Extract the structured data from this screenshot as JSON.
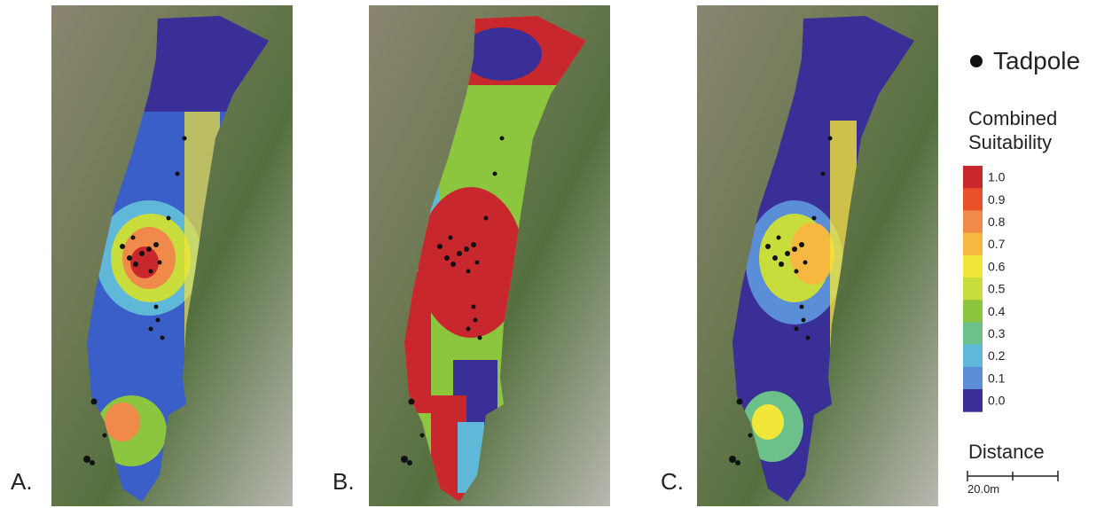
{
  "panels": [
    {
      "label": "A."
    },
    {
      "label": "B."
    },
    {
      "label": "C."
    }
  ],
  "legend": {
    "point_label": "Tadpole",
    "title": "Combined Suitability",
    "colorbar": {
      "ticks": [
        {
          "value": 1,
          "label": "1.0"
        },
        {
          "value": 0.9,
          "label": "0.9"
        },
        {
          "value": 0.8,
          "label": "0.8"
        },
        {
          "value": 0.7,
          "label": "0.7"
        },
        {
          "value": 0.6,
          "label": "0.6"
        },
        {
          "value": 0.5,
          "label": "0.5"
        },
        {
          "value": 0.4,
          "label": "0.4"
        },
        {
          "value": 0.3,
          "label": "0.3"
        },
        {
          "value": 0.2,
          "label": "0.2"
        },
        {
          "value": 0.1,
          "label": "0.1"
        },
        {
          "value": 0,
          "label": "0.0"
        }
      ],
      "colors": [
        "#c8282d",
        "#e8502a",
        "#f08a4a",
        "#f6b840",
        "#f2e63a",
        "#c8dc3c",
        "#8cc63f",
        "#6cc08a",
        "#60b8d8",
        "#5a8fd8",
        "#3a2f96"
      ]
    }
  },
  "scale_bar": {
    "title": "Distance",
    "label": "20.0m"
  }
}
